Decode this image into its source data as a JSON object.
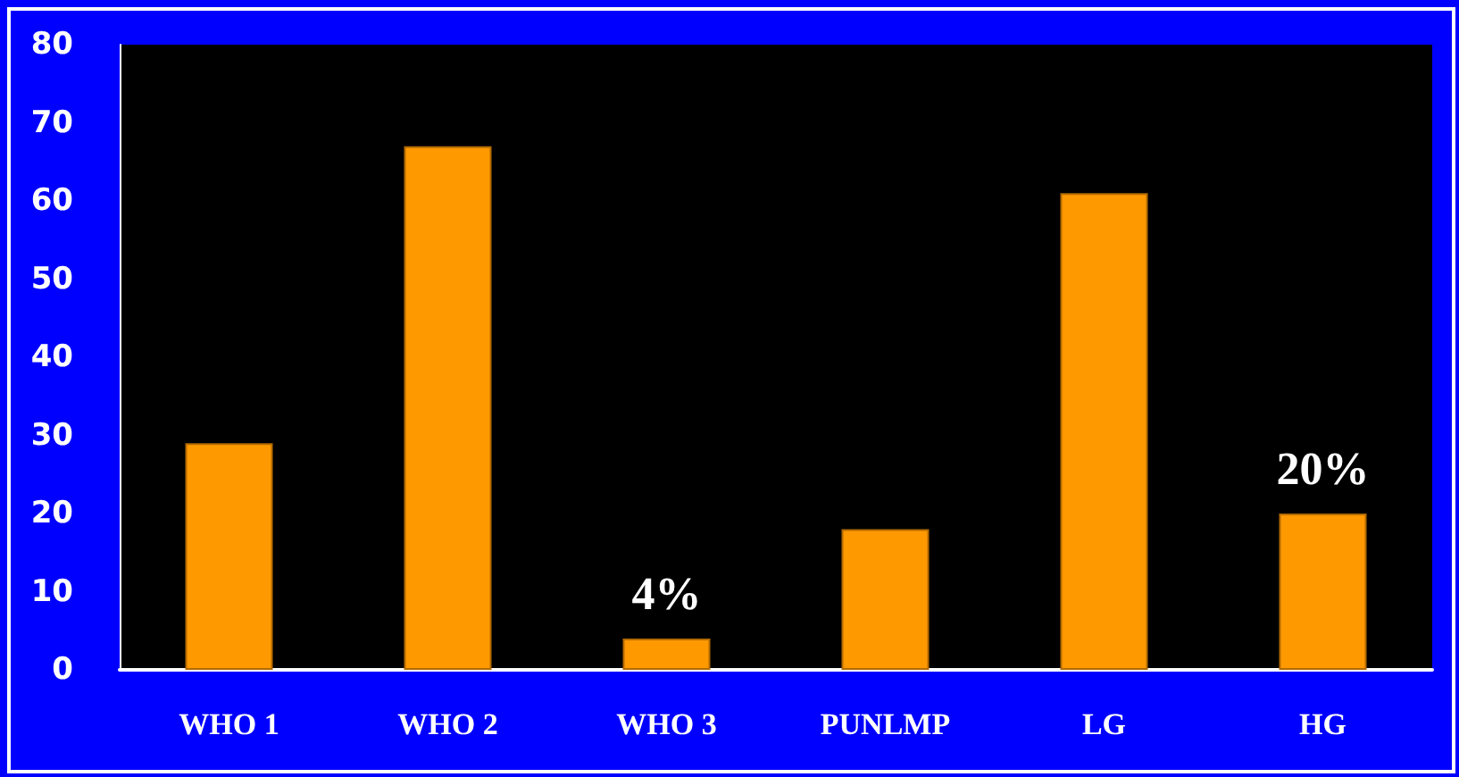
{
  "chart_data": {
    "type": "bar",
    "categories": [
      "WHO 1",
      "WHO 2",
      "WHO 3",
      "PUNLMP",
      "LG",
      "HG"
    ],
    "values": [
      29,
      67,
      4,
      18,
      61,
      20
    ],
    "value_labels": [
      null,
      null,
      "4%",
      null,
      null,
      "20%"
    ],
    "color": "#ff9900",
    "ylim": [
      0,
      80
    ],
    "yticks": [
      0,
      10,
      20,
      30,
      40,
      50,
      60,
      70,
      80
    ],
    "grid": false
  }
}
